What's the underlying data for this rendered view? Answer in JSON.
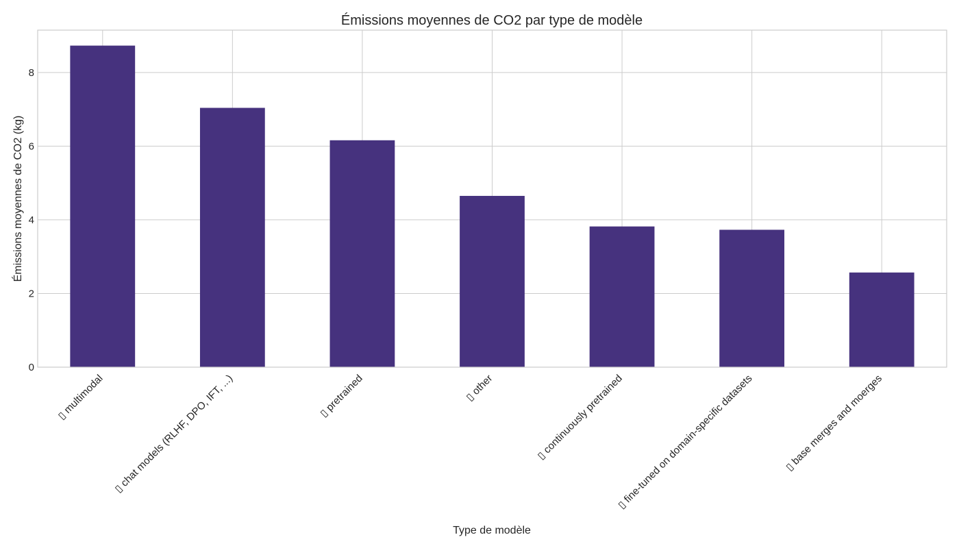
{
  "chart_data": {
    "type": "bar",
    "title": "Émissions moyennes de CO2 par type de modèle",
    "xlabel": "Type de modèle",
    "ylabel": "Émissions moyennes de CO2 (kg)",
    "categories": [
      "▯ multimodal",
      "▯ chat models (RLHF, DPO, IFT, ...)",
      "▯ pretrained",
      "▯ other",
      "▯ continuously pretrained",
      "▯ fine-tuned on domain-specific datasets",
      "▯ base merges and moerges"
    ],
    "values": [
      8.73,
      7.04,
      6.16,
      4.65,
      3.82,
      3.73,
      2.57
    ],
    "yticks": [
      0,
      2,
      4,
      6,
      8
    ],
    "ylim": [
      0,
      9.15
    ],
    "grid": true,
    "bar_color": "#46327e"
  }
}
